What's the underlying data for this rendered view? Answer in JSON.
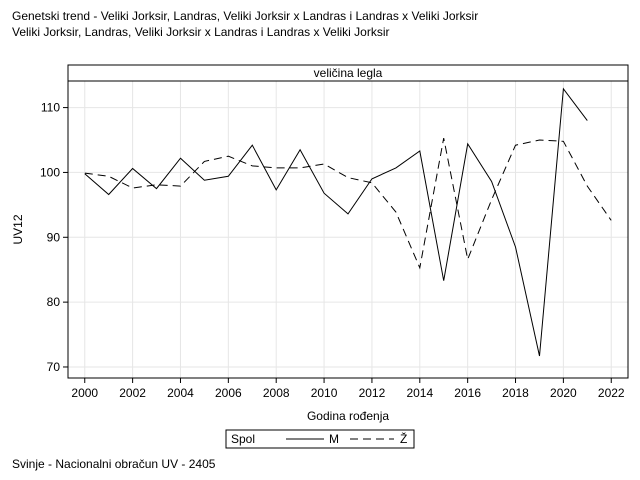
{
  "title_line1": "Genetski trend - Veliki Jorksir, Landras, Veliki Jorksir x Landras i Landras x Veliki Jorksir",
  "title_line2": "Veliki Jorksir, Landras, Veliki Jorksir x Landras i Landras x Veliki Jorksir",
  "footer": "Svinje - Nacionalni obračun UV - 2405",
  "colors": {
    "line": "#000000",
    "grid": "#e6e6e6",
    "frame": "#000000"
  },
  "chart_data": {
    "type": "line",
    "panel_label": "veličina legla",
    "xlabel": "Godina rođenja",
    "ylabel": "UV12",
    "xlim": [
      1999.3,
      2022.7
    ],
    "ylim": [
      68.3,
      114.1
    ],
    "x_ticks": [
      2000,
      2002,
      2004,
      2006,
      2008,
      2010,
      2012,
      2014,
      2016,
      2018,
      2020,
      2022
    ],
    "y_ticks": [
      70,
      80,
      90,
      100,
      110
    ],
    "grid": true,
    "legend": {
      "title": "Spol",
      "position": "bottom-center"
    },
    "series": [
      {
        "name": "M",
        "style": "solid",
        "x": [
          2000,
          2001,
          2002,
          2003,
          2004,
          2005,
          2006,
          2007,
          2008,
          2009,
          2010,
          2011,
          2012,
          2013,
          2014,
          2015,
          2016,
          2017,
          2018,
          2019,
          2020,
          2021
        ],
        "y": [
          99.8,
          96.6,
          100.6,
          97.5,
          102.2,
          98.8,
          99.4,
          104.2,
          97.3,
          103.5,
          96.8,
          93.6,
          99.0,
          100.7,
          103.3,
          83.3,
          104.4,
          98.6,
          88.5,
          71.7,
          112.9,
          108.0
        ]
      },
      {
        "name": "Ž",
        "style": "dashed",
        "x": [
          2000,
          2001,
          2002,
          2003,
          2004,
          2005,
          2006,
          2007,
          2008,
          2009,
          2010,
          2011,
          2012,
          2013,
          2014,
          2015,
          2016,
          2017,
          2018,
          2019,
          2020,
          2021,
          2022
        ],
        "y": [
          99.9,
          99.4,
          97.6,
          98.1,
          97.9,
          101.7,
          102.5,
          101.0,
          100.7,
          100.7,
          101.3,
          99.2,
          98.4,
          93.9,
          85.3,
          105.3,
          86.6,
          95.8,
          104.2,
          105.0,
          104.8,
          97.9,
          92.6
        ]
      }
    ]
  }
}
